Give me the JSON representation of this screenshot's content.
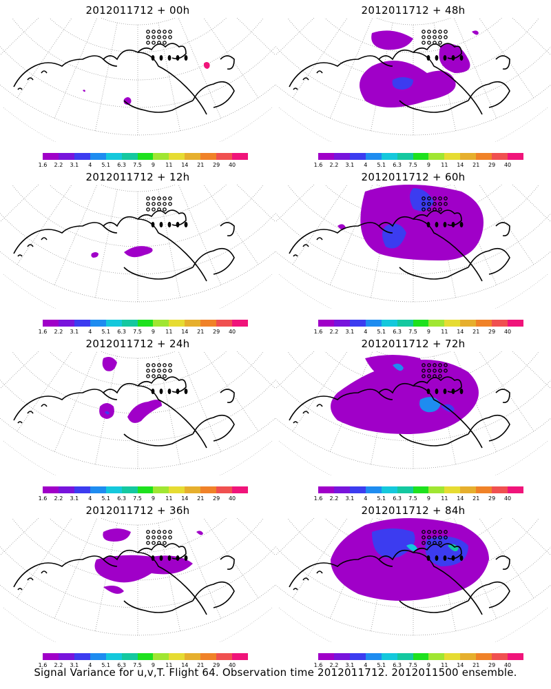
{
  "panels": [
    {
      "title": "2012011712 + 00h"
    },
    {
      "title": "2012011712 + 48h"
    },
    {
      "title": "2012011712 + 12h"
    },
    {
      "title": "2012011712 + 60h"
    },
    {
      "title": "2012011712 + 24h"
    },
    {
      "title": "2012011712 + 72h"
    },
    {
      "title": "2012011712 + 36h"
    },
    {
      "title": "2012011712 + 84h"
    }
  ],
  "colorbar": {
    "labels": [
      "1.6",
      "2.2",
      "3.1",
      "4",
      "5.1",
      "6.3",
      "7.5",
      "9",
      "11",
      "14",
      "21",
      "29",
      "40"
    ],
    "colors": [
      "#a000c8",
      "#7814dc",
      "#3c3cf0",
      "#1e8cf0",
      "#14c8dc",
      "#14c8a0",
      "#1ee11e",
      "#a0e632",
      "#e6dc32",
      "#e6af2d",
      "#f08228",
      "#f05050",
      "#f0147a"
    ]
  },
  "footer": "Signal Variance for u,v,T. Flight 64. Observation time 2012011712. 2012011500 ensemble."
}
